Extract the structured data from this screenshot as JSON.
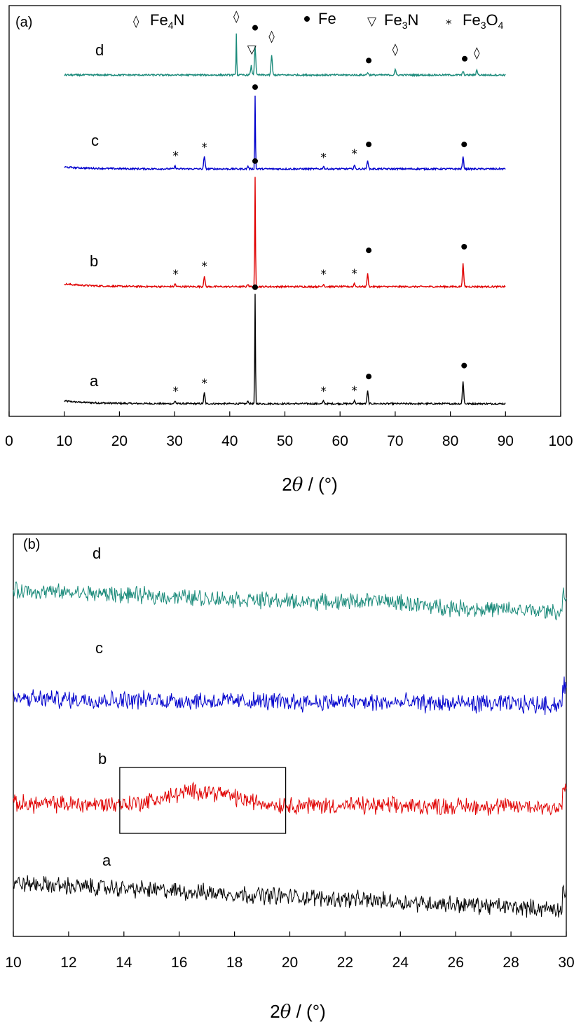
{
  "chart_data": [
    {
      "type": "line",
      "panel_label": "(a)",
      "xlabel_prefix": "2",
      "xlabel_symbol": "θ",
      "xlabel_suffix": " / (°)",
      "xlim": [
        0,
        100
      ],
      "xticks": [
        0,
        10,
        20,
        30,
        40,
        50,
        60,
        70,
        80,
        90,
        100
      ],
      "x_range": [
        10,
        90
      ],
      "legend": [
        {
          "symbol": "◊",
          "label": "Fe",
          "sub": "4",
          "label_rest": "N"
        },
        {
          "symbol": "●",
          "label": "Fe",
          "sub": "",
          "label_rest": ""
        },
        {
          "symbol": "▽",
          "label": "Fe",
          "sub": "3",
          "label_rest": "N"
        },
        {
          "symbol": "*",
          "label": "Fe",
          "sub": "3",
          "label_rest": "O",
          "sub2": "4"
        }
      ],
      "series": [
        {
          "name": "a",
          "color": "#000000",
          "baseline": 0,
          "start_rise": 1.5,
          "peaks": [
            [
              30.1,
              1.5
            ],
            [
              35.4,
              6
            ],
            [
              43.3,
              1.5
            ],
            [
              44.6,
              60
            ],
            [
              57.0,
              1.5
            ],
            [
              62.6,
              2
            ],
            [
              65.0,
              7
            ],
            [
              82.3,
              12.5
            ]
          ],
          "markers": [
            {
              "x": 30.2,
              "y": 6.5,
              "sym": "*"
            },
            {
              "x": 35.4,
              "y": 11,
              "sym": "*"
            },
            {
              "x": 44.6,
              "y": 62,
              "sym": "●"
            },
            {
              "x": 57.0,
              "y": 6.5,
              "sym": "*"
            },
            {
              "x": 62.6,
              "y": 7,
              "sym": "*"
            },
            {
              "x": 65.2,
              "y": 13,
              "sym": "●"
            },
            {
              "x": 82.5,
              "y": 19,
              "sym": "●"
            }
          ]
        },
        {
          "name": "b",
          "color": "#e00000",
          "baseline": 0,
          "start_rise": 1.5,
          "peaks": [
            [
              30.1,
              1.5
            ],
            [
              35.4,
              6
            ],
            [
              43.3,
              1.5
            ],
            [
              44.6,
              60
            ],
            [
              57.0,
              1.5
            ],
            [
              62.6,
              2
            ],
            [
              65.0,
              7
            ],
            [
              82.3,
              12.5
            ]
          ],
          "markers": [
            {
              "x": 30.2,
              "y": 6.5,
              "sym": "*"
            },
            {
              "x": 35.4,
              "y": 11,
              "sym": "*"
            },
            {
              "x": 44.6,
              "y": 67,
              "sym": "●"
            },
            {
              "x": 57.0,
              "y": 6.5,
              "sym": "*"
            },
            {
              "x": 62.6,
              "y": 7,
              "sym": "*"
            },
            {
              "x": 65.2,
              "y": 18,
              "sym": "●"
            },
            {
              "x": 82.5,
              "y": 20,
              "sym": "●"
            }
          ]
        },
        {
          "name": "c",
          "color": "#0000cc",
          "baseline": 0,
          "start_rise": 1,
          "peaks": [
            [
              30.1,
              1.5
            ],
            [
              35.4,
              7
            ],
            [
              43.3,
              1.5
            ],
            [
              44.6,
              40
            ],
            [
              57.0,
              1.5
            ],
            [
              62.6,
              2
            ],
            [
              65.0,
              5
            ],
            [
              82.3,
              6.5
            ]
          ],
          "markers": [
            {
              "x": 30.2,
              "y": 7,
              "sym": "*"
            },
            {
              "x": 35.4,
              "y": 11.5,
              "sym": "*"
            },
            {
              "x": 44.6,
              "y": 43,
              "sym": "●"
            },
            {
              "x": 57.0,
              "y": 6,
              "sym": "*"
            },
            {
              "x": 62.6,
              "y": 8,
              "sym": "*"
            },
            {
              "x": 65.2,
              "y": 11.5,
              "sym": "●"
            },
            {
              "x": 82.5,
              "y": 11.5,
              "sym": "●"
            }
          ]
        },
        {
          "name": "d",
          "color": "#1a8a7a",
          "baseline": 0,
          "start_rise": 0,
          "peaks": [
            [
              41.2,
              23
            ],
            [
              43.9,
              5
            ],
            [
              44.6,
              16
            ],
            [
              47.6,
              11
            ],
            [
              65.0,
              1.5
            ],
            [
              70.0,
              3
            ],
            [
              82.3,
              2
            ],
            [
              84.8,
              3
            ]
          ],
          "markers": [
            {
              "x": 41.2,
              "y": 30,
              "sym": "◊"
            },
            {
              "x": 44.0,
              "y": 12,
              "sym": "▽"
            },
            {
              "x": 44.6,
              "y": 24,
              "sym": "●"
            },
            {
              "x": 47.6,
              "y": 19,
              "sym": "◊"
            },
            {
              "x": 65.2,
              "y": 6,
              "sym": "●"
            },
            {
              "x": 70.0,
              "y": 12,
              "sym": "◊"
            },
            {
              "x": 82.6,
              "y": 7,
              "sym": "●"
            },
            {
              "x": 84.8,
              "y": 10,
              "sym": "◊"
            }
          ]
        }
      ]
    },
    {
      "type": "line",
      "panel_label": "(b)",
      "xlabel_prefix": "2",
      "xlabel_symbol": "θ",
      "xlabel_suffix": " / (°)",
      "xlim": [
        10,
        30
      ],
      "xticks": [
        10,
        12,
        14,
        16,
        18,
        20,
        22,
        24,
        26,
        28,
        30
      ],
      "highlight_box": {
        "x": [
          13.85,
          19.85
        ],
        "on_series": "b"
      },
      "series": [
        {
          "name": "a",
          "color": "#000000",
          "start": 9,
          "end": 0.5,
          "noise": 4.2,
          "hump": null
        },
        {
          "name": "b",
          "color": "#e00000",
          "start": 3,
          "end": 2,
          "noise": 4.2,
          "hump": {
            "center": 16.8,
            "width": 1.6,
            "height": 4.5
          }
        },
        {
          "name": "c",
          "color": "#0000cc",
          "start": 3,
          "end": 1,
          "noise": 4.4,
          "hump": null
        },
        {
          "name": "d",
          "color": "#1a8a7a",
          "start": 8.5,
          "end": 1.5,
          "noise": 4.0,
          "hump": {
            "center": 23.2,
            "width": 1.5,
            "height": 1.2
          }
        }
      ]
    }
  ]
}
